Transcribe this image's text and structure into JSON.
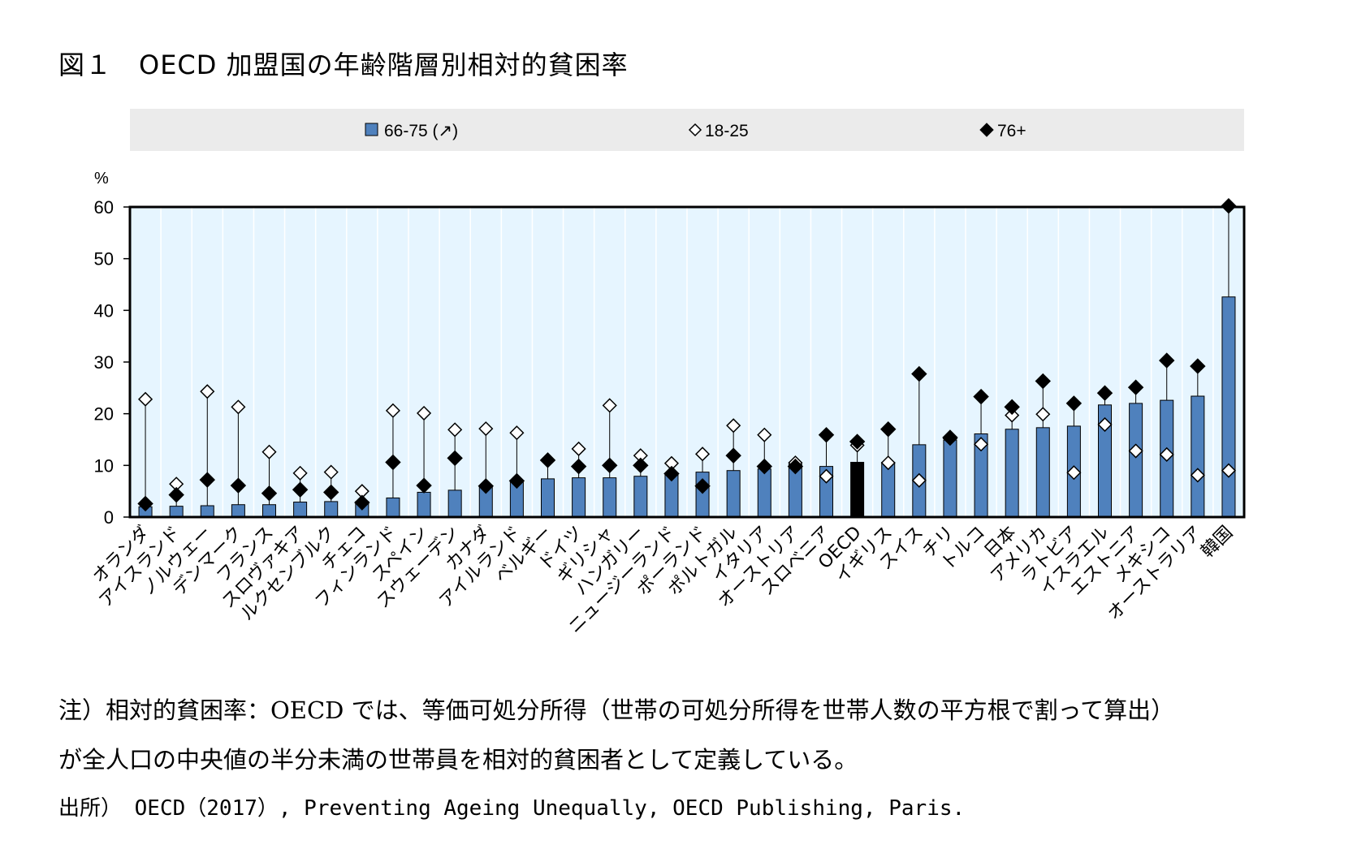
{
  "title": "図１　OECD 加盟国の年齢階層別相対的貧困率",
  "notes": {
    "line1": "注）相対的貧困率：OECD では、等価可処分所得（世帯の可処分所得を世帯人数の平方根で割って算出）",
    "line2": "が全人口の中央値の半分未満の世帯員を相対的貧困者として定義している。",
    "source": "出所） OECD（2017）, Preventing Ageing Unequally, OECD Publishing, Paris."
  },
  "colors": {
    "bar": "#4F81BD",
    "highlight_bar": "#000000",
    "plot_bg": "#E6F5FF",
    "legend_bg": "#EBEBEB"
  },
  "chart_data": {
    "type": "bar",
    "ylabel": "%",
    "ylim": [
      0,
      60
    ],
    "yticks": [
      0,
      10,
      20,
      30,
      40,
      50,
      60
    ],
    "legend_position": "top",
    "categories": [
      "オランダ",
      "アイスランド",
      "ノルウェー",
      "デンマーク",
      "フランス",
      "スロヴァキア",
      "ルクセンブルク",
      "チェコ",
      "フィンランド",
      "スペイン",
      "スウェーデン",
      "カナダ",
      "アイルランド",
      "ベルギー",
      "ドイツ",
      "ギリシャ",
      "ハンガリー",
      "ニュージーランド",
      "ポーランド",
      "ポルトガル",
      "イタリア",
      "オーストリア",
      "スロベニア",
      "OECD",
      "イギリス",
      "スイス",
      "チリ",
      "トルコ",
      "日本",
      "アメリカ",
      "ラトビア",
      "イスラエル",
      "エストニア",
      "メキシコ",
      "オーストラリア",
      "韓国"
    ],
    "highlight_category": "OECD",
    "series": [
      {
        "name": "66-75 (↗)",
        "marker": "bar",
        "values": [
          2.0,
          2.1,
          2.2,
          2.4,
          2.4,
          2.9,
          3.0,
          3.0,
          3.7,
          4.8,
          5.2,
          6.0,
          6.8,
          7.4,
          7.6,
          7.6,
          7.9,
          8.5,
          8.7,
          9.0,
          9.3,
          10.2,
          9.8,
          10.6,
          10.6,
          14.0,
          14.9,
          16.1,
          17.0,
          17.3,
          17.6,
          21.7,
          22.0,
          22.6,
          23.4,
          42.6
        ]
      },
      {
        "name": "18-25",
        "marker": "diamond-open",
        "values": [
          22.8,
          6.4,
          24.3,
          21.3,
          12.6,
          8.5,
          8.7,
          5.0,
          20.6,
          20.1,
          16.9,
          17.1,
          16.3,
          11.1,
          13.2,
          21.6,
          11.9,
          10.4,
          12.2,
          17.7,
          15.9,
          10.5,
          7.9,
          13.9,
          10.5,
          7.1,
          15.2,
          14.1,
          19.7,
          19.9,
          8.6,
          17.9,
          12.8,
          12.1,
          8.1,
          9.0
        ]
      },
      {
        "name": "76+",
        "marker": "diamond-filled",
        "values": [
          2.6,
          4.3,
          7.2,
          6.1,
          4.6,
          5.3,
          4.8,
          2.8,
          10.6,
          6.1,
          11.4,
          6.0,
          7.0,
          11.0,
          9.8,
          10.0,
          10.0,
          8.4,
          6.0,
          11.9,
          9.8,
          9.8,
          15.9,
          14.6,
          17.0,
          27.7,
          15.4,
          23.3,
          21.3,
          26.3,
          22.0,
          24.0,
          25.1,
          30.3,
          29.2,
          60.2
        ]
      }
    ]
  }
}
